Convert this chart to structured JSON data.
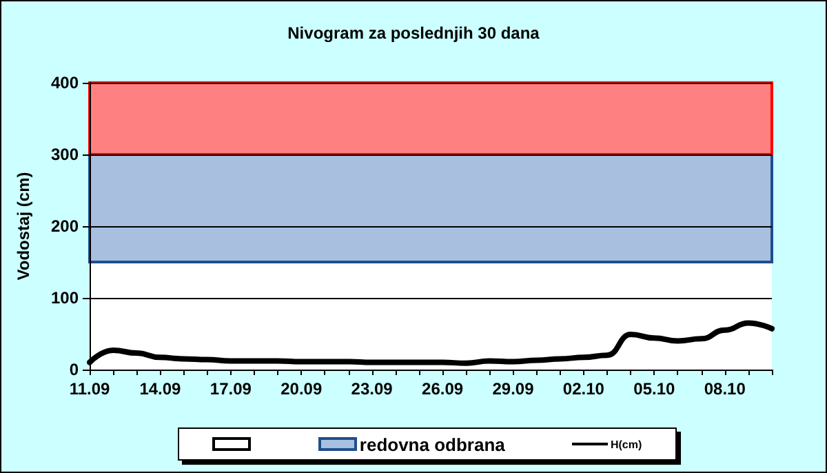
{
  "chart_data": {
    "type": "line",
    "title": "Nivogram za poslednjih 30 dana",
    "ylabel": "Vodostaj (cm)",
    "categories": [
      "11.09",
      null,
      null,
      "14.09",
      null,
      null,
      "17.09",
      null,
      null,
      "20.09",
      null,
      null,
      "23.09",
      null,
      null,
      "26.09",
      null,
      null,
      "29.09",
      null,
      null,
      "02.10",
      null,
      null,
      "05.10",
      null,
      null,
      "08.10",
      null,
      null
    ],
    "series": [
      {
        "name": "H(cm)",
        "color": "#000000",
        "values": [
          10,
          27,
          23,
          17,
          15,
          14,
          12,
          12,
          12,
          11,
          11,
          11,
          10,
          10,
          10,
          10,
          9,
          12,
          11,
          13,
          15,
          17,
          20,
          49,
          44,
          40,
          43,
          55,
          65,
          57
        ]
      }
    ],
    "ylim": [
      0,
      400
    ],
    "yticks": [
      0,
      100,
      200,
      300,
      400
    ],
    "grid": "y",
    "legend": "bottom",
    "marker": "none",
    "line_style": "solid",
    "bands": [
      {
        "axis": "y",
        "from": 0,
        "to": 150,
        "color": "#ffffff"
      },
      {
        "axis": "y",
        "from": 150,
        "to": 300,
        "label": "redovna odbrana",
        "color": "#a8bfdf"
      },
      {
        "axis": "y",
        "from": 300,
        "to": 400,
        "label": null,
        "color": "#ff8080"
      }
    ]
  }
}
